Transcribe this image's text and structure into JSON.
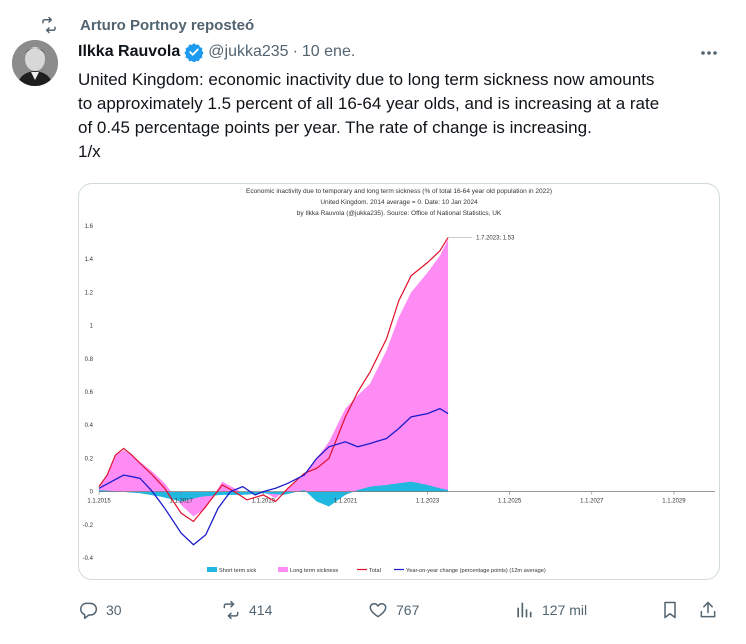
{
  "repost": {
    "label": "Arturo Portnoy reposteó"
  },
  "author": {
    "name": "Ilkka Rauvola",
    "handle": "@jukka235",
    "separator": "·",
    "date": "10 ene."
  },
  "tweet": {
    "text": "United Kingdom: economic inactivity due to long term sickness now amounts\nto approximately 1.5 percent of all 16-64 year olds, and is increasing at a rate\nof 0.45 percentage points per year. The rate of change is increasing.\n1/x"
  },
  "chart_data": {
    "type": "area",
    "title": "Economic inactivity due to temporary and long term sickness (% of total 16-64 year old population in 2022)",
    "subtitle1": "United Kingdom. 2014 average = 0. Date: 10 Jan 2024",
    "subtitle2": "by Ilkka Rauvola (@jukka235). Source: Office of National Statistics, UK",
    "ylim": [
      -0.4,
      1.6
    ],
    "y_ticks": [
      "1.6",
      "1.4",
      "1.2",
      "1",
      "0.8",
      "0.6",
      "0.4",
      "0.2",
      "0",
      "-0.2",
      "-0.4"
    ],
    "x_ticks": [
      "1.1.2015",
      "1.1.2017",
      "1.1.2019",
      "1.1.2021",
      "1.1.2023",
      "1.1.2025",
      "1.1.2027",
      "1.1.2029"
    ],
    "x_range": [
      2015.0,
      2030.0
    ],
    "annotation": "1.7.2023; 1.53",
    "legend": [
      "Short term sick",
      "Long term sickness",
      "Total",
      "Year-on-year change (percentage points) (12m average)"
    ],
    "colors": {
      "short": "#20b8e0",
      "long": "#ff8cf4",
      "total": "#e0102a",
      "yoy": "#1c1ccc",
      "axis": "#777777",
      "text": "#333333"
    },
    "series": [
      {
        "name": "Short term sick",
        "x": [
          2015.0,
          2015.5,
          2016.0,
          2016.5,
          2017.0,
          2017.5,
          2018.0,
          2018.5,
          2019.0,
          2019.5,
          2020.0,
          2020.3,
          2020.6,
          2021.0,
          2021.3,
          2021.6,
          2022.0,
          2022.3,
          2022.6,
          2023.0,
          2023.3,
          2023.5
        ],
        "values": [
          0.01,
          0.0,
          -0.01,
          -0.03,
          -0.06,
          -0.03,
          -0.02,
          -0.02,
          -0.01,
          -0.02,
          0.01,
          -0.06,
          -0.09,
          -0.02,
          0.01,
          0.03,
          0.04,
          0.05,
          0.06,
          0.04,
          0.02,
          0.01
        ]
      },
      {
        "name": "Long term sickness",
        "x": [
          2015.0,
          2015.2,
          2015.4,
          2015.6,
          2015.8,
          2016.0,
          2016.3,
          2016.6,
          2017.0,
          2017.3,
          2017.6,
          2018.0,
          2018.3,
          2018.6,
          2019.0,
          2019.3,
          2019.6,
          2020.0,
          2020.3,
          2020.6,
          2021.0,
          2021.3,
          2021.6,
          2022.0,
          2022.3,
          2022.6,
          2023.0,
          2023.3,
          2023.5
        ],
        "values": [
          0.02,
          0.1,
          0.22,
          0.25,
          0.22,
          0.18,
          0.12,
          0.05,
          -0.08,
          -0.15,
          -0.1,
          0.06,
          0.02,
          -0.02,
          0.0,
          -0.04,
          0.02,
          0.1,
          0.2,
          0.3,
          0.5,
          0.58,
          0.65,
          0.85,
          1.05,
          1.2,
          1.32,
          1.42,
          1.52
        ]
      },
      {
        "name": "Total",
        "x": [
          2015.0,
          2015.2,
          2015.4,
          2015.6,
          2015.8,
          2016.0,
          2016.3,
          2016.6,
          2017.0,
          2017.3,
          2017.6,
          2018.0,
          2018.3,
          2018.6,
          2019.0,
          2019.3,
          2019.6,
          2020.0,
          2020.3,
          2020.6,
          2021.0,
          2021.3,
          2021.6,
          2022.0,
          2022.3,
          2022.6,
          2023.0,
          2023.3,
          2023.5
        ],
        "values": [
          0.03,
          0.1,
          0.22,
          0.26,
          0.22,
          0.17,
          0.1,
          0.02,
          -0.13,
          -0.18,
          -0.09,
          0.04,
          0.0,
          -0.05,
          -0.02,
          -0.06,
          0.02,
          0.11,
          0.14,
          0.2,
          0.45,
          0.6,
          0.72,
          0.92,
          1.15,
          1.3,
          1.38,
          1.45,
          1.53
        ]
      },
      {
        "name": "Year-on-year change (percentage points) (12m average)",
        "x": [
          2015.0,
          2015.3,
          2015.6,
          2016.0,
          2016.3,
          2016.6,
          2017.0,
          2017.3,
          2017.6,
          2017.9,
          2018.2,
          2018.5,
          2018.8,
          2019.0,
          2019.3,
          2019.6,
          2020.0,
          2020.3,
          2020.6,
          2021.0,
          2021.3,
          2021.6,
          2022.0,
          2022.3,
          2022.6,
          2023.0,
          2023.3,
          2023.5
        ],
        "values": [
          0.02,
          0.06,
          0.1,
          0.08,
          0.0,
          -0.1,
          -0.25,
          -0.32,
          -0.26,
          -0.1,
          0.0,
          0.03,
          -0.02,
          0.0,
          0.02,
          0.05,
          0.1,
          0.2,
          0.27,
          0.3,
          0.27,
          0.29,
          0.32,
          0.38,
          0.45,
          0.47,
          0.5,
          0.47
        ]
      }
    ]
  },
  "actions": {
    "replies": "30",
    "reposts": "414",
    "likes": "767",
    "views": "127 mil"
  }
}
